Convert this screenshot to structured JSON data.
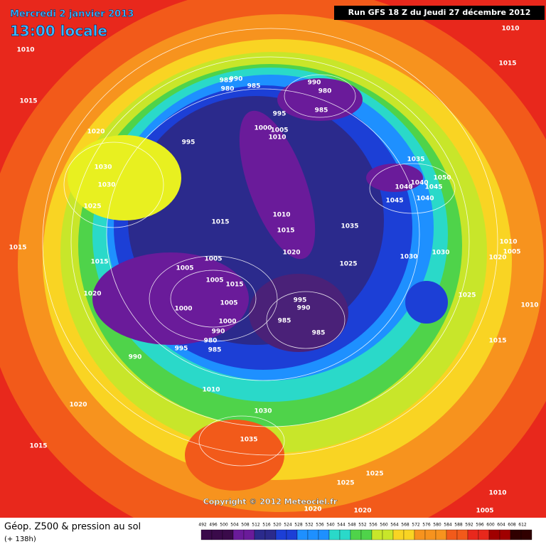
{
  "header": {
    "date": "Mercredi 2 janvier 2013",
    "time": "13:00 locale",
    "run": "Run GFS 18 Z du Jeudi 27 décembre 2012"
  },
  "copyright": "Copyright © 2012 Meteociel.fr",
  "legend": {
    "title": "Géop. Z500 & pression au sol",
    "lead": "(+ 138h)",
    "scale": [
      "492",
      "496",
      "500",
      "504",
      "508",
      "512",
      "516",
      "520",
      "524",
      "528",
      "532",
      "536",
      "540",
      "544",
      "548",
      "552",
      "556",
      "560",
      "564",
      "568",
      "572",
      "576",
      "580",
      "584",
      "588",
      "592",
      "596",
      "600",
      "604",
      "608",
      "612"
    ]
  },
  "isobars": [
    "1010",
    "1015",
    "1020",
    "995",
    "1030",
    "1030",
    "1025",
    "1015",
    "1015",
    "1020",
    "985",
    "990",
    "980",
    "985",
    "990",
    "980",
    "985",
    "995",
    "1000",
    "1005",
    "1010",
    "1035",
    "1050",
    "1040",
    "1040",
    "1045",
    "1045",
    "1040",
    "1010",
    "1015",
    "1015",
    "1035",
    "1020",
    "1025",
    "1030",
    "1030",
    "1010",
    "1005",
    "1020",
    "1025",
    "1010",
    "1015",
    "1005",
    "1005",
    "1005",
    "1015",
    "1005",
    "1000",
    "995",
    "990",
    "985",
    "985",
    "990",
    "980",
    "985",
    "995",
    "990",
    "1000",
    "1010",
    "1020",
    "1030",
    "1015",
    "1035",
    "1025",
    "1025",
    "1010",
    "1005",
    "1020",
    "1020",
    "1010",
    "1015"
  ]
}
